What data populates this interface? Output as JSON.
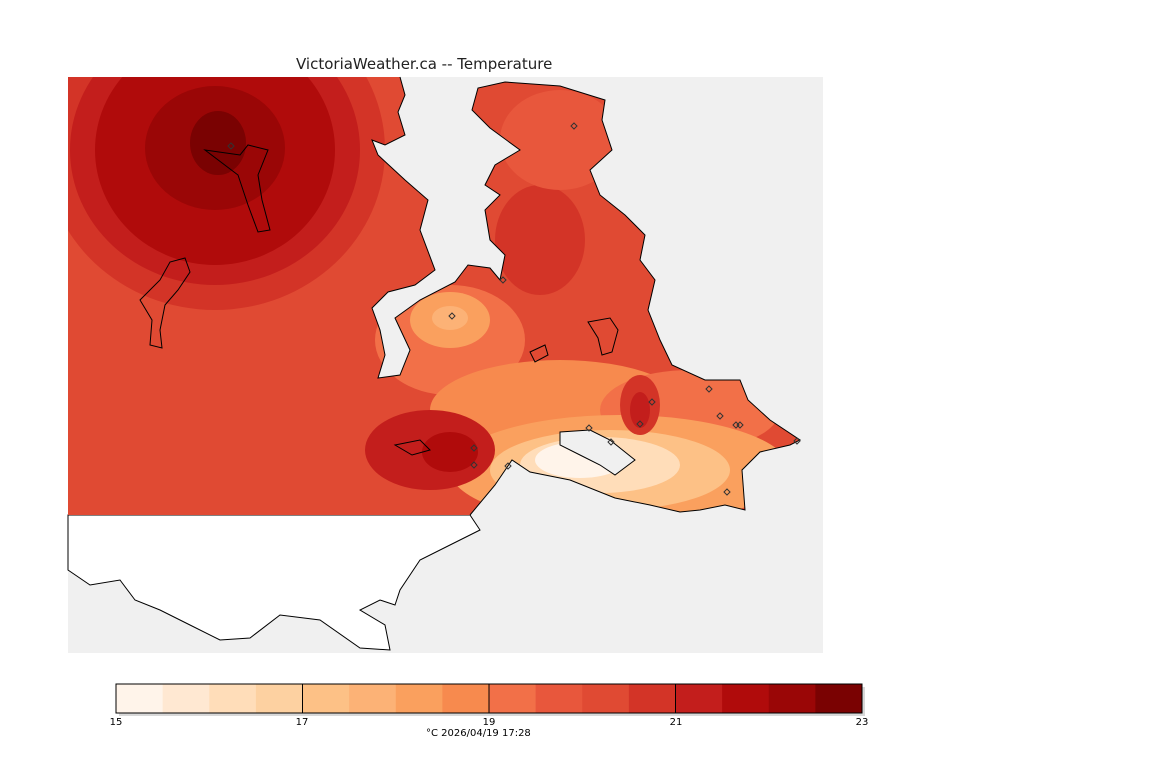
{
  "title": "VictoriaWeather.ca -- Temperature",
  "caption": "°C  2026/04/19 17:28",
  "legend": {
    "min": 15,
    "max": 23,
    "tick_labels": [
      "15",
      "17",
      "19",
      "21",
      "23"
    ],
    "colors": [
      "#fff4ea",
      "#ffe8d2",
      "#ffddb9",
      "#fdd1a1",
      "#fdc186",
      "#fcb276",
      "#faa05e",
      "#f78a4e",
      "#f27048",
      "#e8573c",
      "#e04a33",
      "#d33427",
      "#c31e1c",
      "#b00b0b",
      "#9a0606",
      "#7a0202"
    ]
  },
  "map": {
    "land_unmapped_color": "#ffffff",
    "water_color": "#f0f0f0",
    "station_count": 17
  }
}
